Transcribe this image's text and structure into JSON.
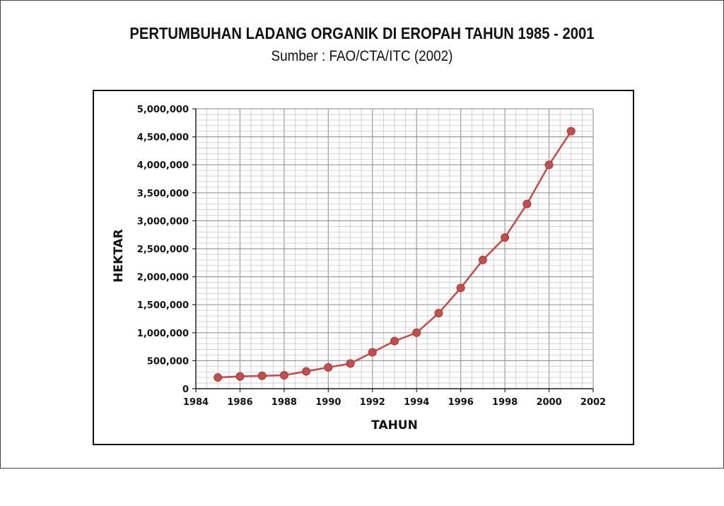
{
  "title": "PERTUMBUHAN LADANG ORGANIK DI EROPAH TAHUN 1985 - 2001",
  "subtitle": "Sumber : FAO/CTA/ITC (2002)",
  "colors": {
    "series": "#c0504d",
    "marker": "#c0504d",
    "grid_major": "#9a9a9a",
    "grid_minor": "#c8c8c8"
  },
  "chart_data": {
    "type": "line",
    "title": "PERTUMBUHAN LADANG ORGANIK DI EROPAH TAHUN 1985 - 2001",
    "subtitle": "Sumber : FAO/CTA/ITC (2002)",
    "xlabel": "TAHUN",
    "ylabel": "HEKTAR",
    "xlim": [
      1984,
      2002
    ],
    "ylim": [
      0,
      5000000
    ],
    "xticks": [
      "1984",
      "1986",
      "1988",
      "1990",
      "1992",
      "1994",
      "1996",
      "1998",
      "2000",
      "2002"
    ],
    "yticks": [
      "0",
      "500,000",
      "1,000,000",
      "1,500,000",
      "2,000,000",
      "2,500,000",
      "3,000,000",
      "3,500,000",
      "4,000,000",
      "4,500,000",
      "5,000,000"
    ],
    "grid": true,
    "legend": "none",
    "series": [
      {
        "x": [
          1985,
          1986,
          1987,
          1988,
          1989,
          1990,
          1991,
          1992,
          1993,
          1994,
          1995,
          1996,
          1997,
          1998,
          1999,
          2000,
          2001
        ],
        "y": [
          200000,
          220000,
          230000,
          240000,
          310000,
          380000,
          450000,
          650000,
          850000,
          1000000,
          1350000,
          1800000,
          2300000,
          2700000,
          3300000,
          4000000,
          4600000
        ]
      }
    ]
  }
}
